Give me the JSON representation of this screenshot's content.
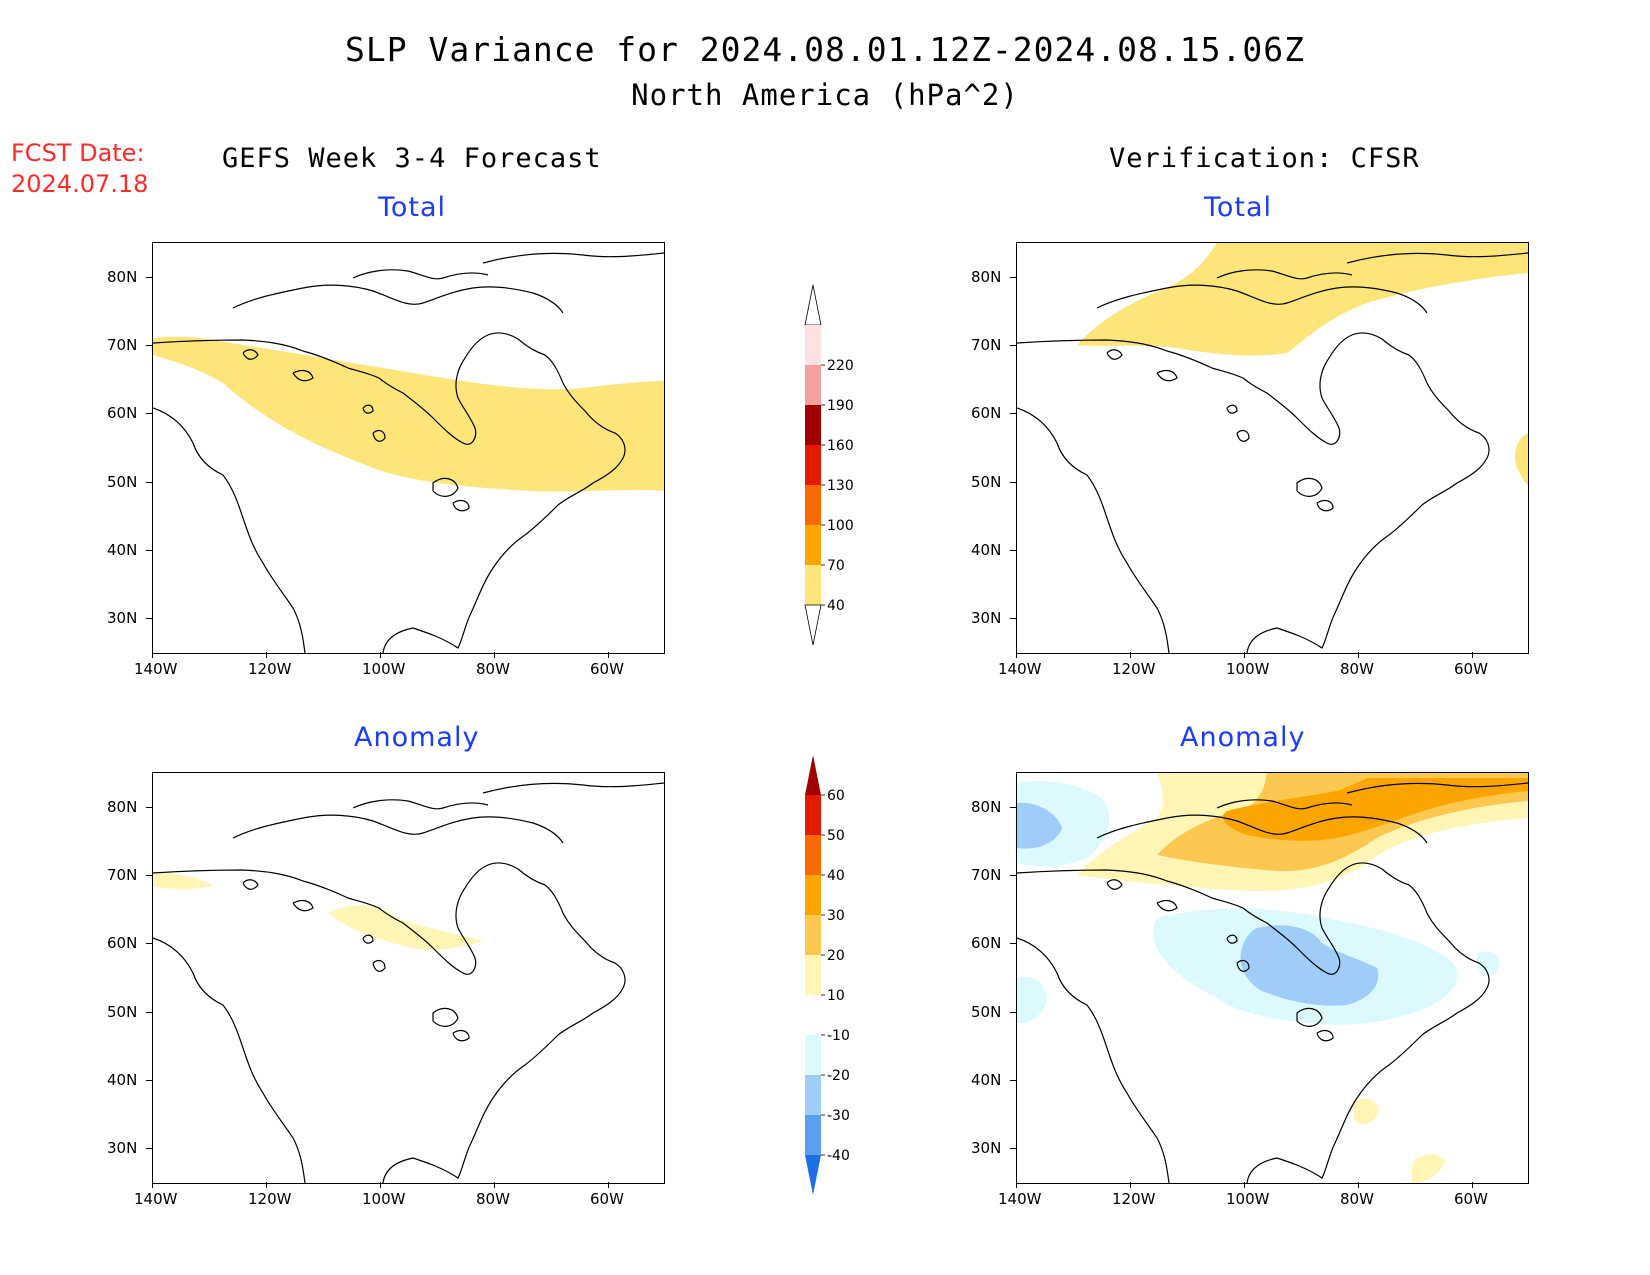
{
  "title": "SLP Variance for 2024.08.01.12Z-2024.08.15.06Z",
  "subtitle": "North America (hPa^2)",
  "fcst_date_label": "FCST Date:",
  "fcst_date_value": "2024.07.18",
  "left_column_title": "GEFS Week 3-4 Forecast",
  "right_column_title": "Verification: CFSR",
  "panels": [
    {
      "title": "Total"
    },
    {
      "title": "Total"
    },
    {
      "title": "Anomaly"
    },
    {
      "title": "Anomaly"
    }
  ],
  "lon_labels": [
    "140W",
    "120W",
    "100W",
    "80W",
    "60W"
  ],
  "lat_labels": [
    "80N",
    "70N",
    "60N",
    "50N",
    "40N",
    "30N"
  ],
  "total_colorbar": {
    "levels": [
      "40",
      "70",
      "100",
      "130",
      "160",
      "190",
      "220"
    ],
    "colors": [
      "#fde57a",
      "#fca500",
      "#fb6a00",
      "#e51b00",
      "#a00000",
      "#f4a0a0",
      "#fde0e0"
    ]
  },
  "anomaly_colorbar": {
    "levels": [
      "-40",
      "-30",
      "-20",
      "-10",
      "10",
      "20",
      "30",
      "40",
      "50",
      "60"
    ],
    "colors": [
      "#1e6ee6",
      "#5aa0f0",
      "#a0ccf8",
      "#dcfafe",
      "#ffffff",
      "#fff5b4",
      "#fdc850",
      "#fca500",
      "#fb6a00",
      "#e51b00",
      "#a00000"
    ]
  },
  "shading": {
    "yellow": "#fde57a",
    "light_yellow": "#fff5b4",
    "gold": "#fdc850",
    "orange": "#fca500",
    "light_cyan": "#dcfafe",
    "light_blue": "#a0ccf8"
  }
}
